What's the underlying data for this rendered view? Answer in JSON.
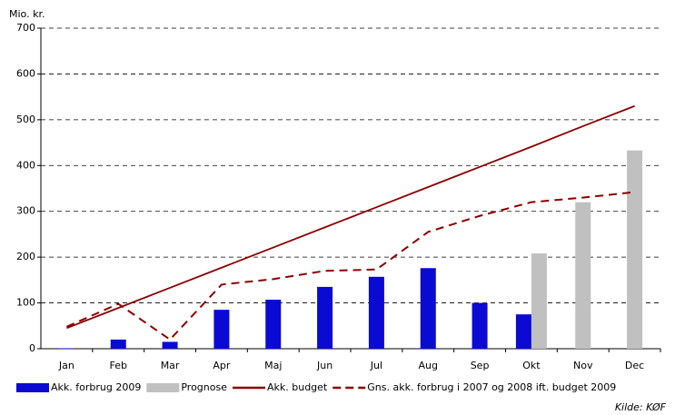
{
  "chart_data": {
    "type": "bar-line",
    "y_label": "Mio. kr.",
    "source": "Kilde: KØF",
    "categories": [
      "Jan",
      "Feb",
      "Mar",
      "Apr",
      "Maj",
      "Jun",
      "Jul",
      "Aug",
      "Sep",
      "Okt",
      "Nov",
      "Dec"
    ],
    "ylim": [
      0,
      700
    ],
    "yticks": [
      0,
      100,
      200,
      300,
      400,
      500,
      600,
      700
    ],
    "grid": true,
    "series": [
      {
        "name": "Akk. forbrug 2009",
        "kind": "bar",
        "color": "#0a0ad2",
        "values": [
          1,
          20,
          15,
          85,
          107,
          135,
          157,
          176,
          100,
          75,
          null,
          null
        ]
      },
      {
        "name": "Prognose",
        "kind": "bar",
        "color": "#c0c0c0",
        "values": [
          null,
          null,
          null,
          null,
          null,
          null,
          null,
          null,
          null,
          208,
          320,
          433
        ]
      },
      {
        "name": "Akk. budget",
        "kind": "line",
        "color": "#8b0000",
        "values": [
          45,
          89,
          133,
          177,
          221,
          265,
          309,
          353,
          397,
          441,
          486,
          530
        ]
      },
      {
        "name": "Gns. akk. forbrug i 2007 og 2008 ift. budget 2009",
        "kind": "dashed",
        "color": "#8b0000",
        "values": [
          48,
          98,
          20,
          140,
          152,
          170,
          173,
          255,
          290,
          320,
          330,
          342
        ]
      }
    ]
  }
}
